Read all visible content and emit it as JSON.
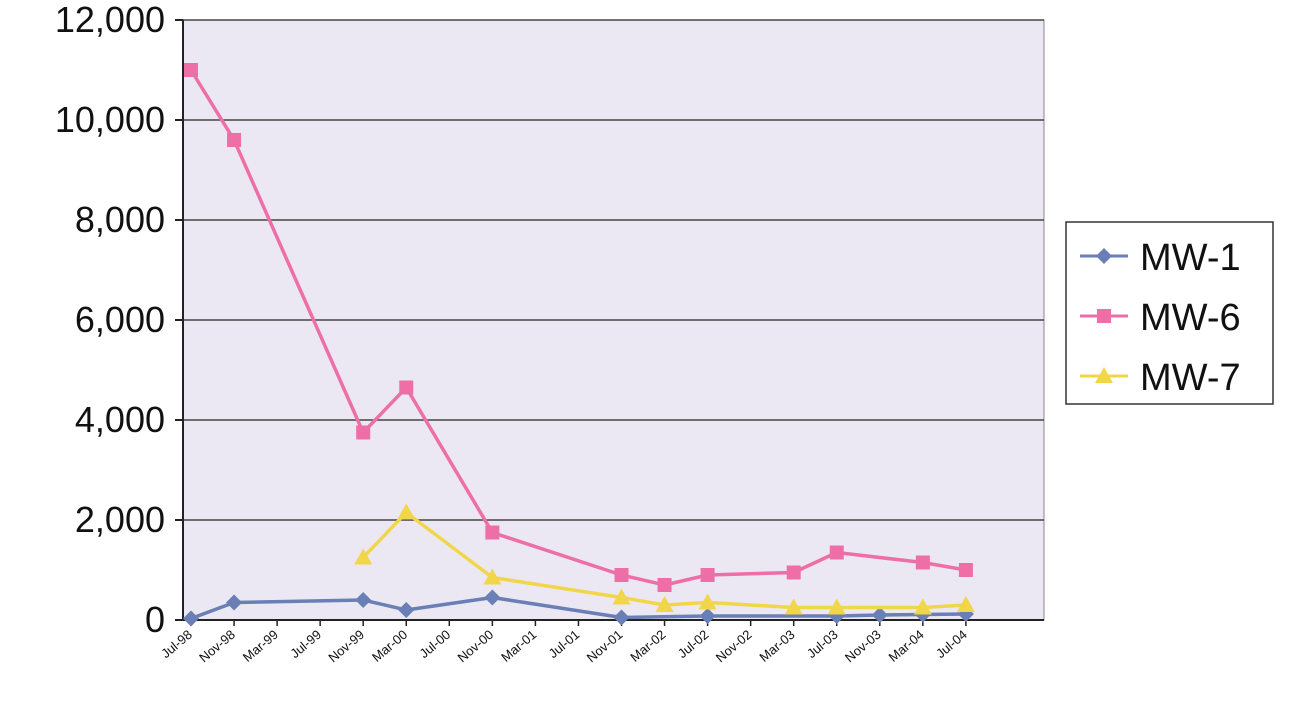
{
  "chart_data": {
    "type": "line",
    "x": [
      "Jul-98",
      "Nov-98",
      "Mar-99",
      "Jul-99",
      "Nov-99",
      "Mar-00",
      "Jul-00",
      "Nov-00",
      "Mar-01",
      "Jul-01",
      "Nov-01",
      "Mar-02",
      "Jul-02",
      "Nov-02",
      "Mar-03",
      "Jul-03",
      "Nov-03",
      "Mar-04",
      "Jul-04"
    ],
    "yticks": [
      "0",
      "2,000",
      "4,000",
      "6,000",
      "8,000",
      "10,000",
      "12,000"
    ],
    "ylim": [
      0,
      12000
    ],
    "grid": true,
    "legend_position": "right",
    "series": [
      {
        "name": "MW-1",
        "color": "#6a7fb5",
        "marker": "diamond",
        "points": [
          {
            "x": "Jul-98",
            "y": 30
          },
          {
            "x": "Nov-98",
            "y": 350
          },
          {
            "x": "Nov-99",
            "y": 400
          },
          {
            "x": "Mar-00",
            "y": 200
          },
          {
            "x": "Nov-00",
            "y": 450
          },
          {
            "x": "Nov-01",
            "y": 50
          },
          {
            "x": "Jul-02",
            "y": 80
          },
          {
            "x": "Jul-03",
            "y": 80
          },
          {
            "x": "Nov-03",
            "y": 100
          },
          {
            "x": "Mar-04",
            "y": 110
          },
          {
            "x": "Jul-04",
            "y": 120
          }
        ]
      },
      {
        "name": "MW-6",
        "color": "#ee6fa8",
        "marker": "square",
        "points": [
          {
            "x": "Jul-98",
            "y": 11000
          },
          {
            "x": "Nov-98",
            "y": 9600
          },
          {
            "x": "Nov-99",
            "y": 3750
          },
          {
            "x": "Mar-00",
            "y": 4650
          },
          {
            "x": "Nov-00",
            "y": 1750
          },
          {
            "x": "Nov-01",
            "y": 900
          },
          {
            "x": "Mar-02",
            "y": 700
          },
          {
            "x": "Jul-02",
            "y": 900
          },
          {
            "x": "Mar-03",
            "y": 950
          },
          {
            "x": "Jul-03",
            "y": 1350
          },
          {
            "x": "Mar-04",
            "y": 1150
          },
          {
            "x": "Jul-04",
            "y": 1000
          }
        ]
      },
      {
        "name": "MW-7",
        "color": "#f2d64a",
        "marker": "triangle",
        "points": [
          {
            "x": "Nov-99",
            "y": 1250
          },
          {
            "x": "Mar-00",
            "y": 2150
          },
          {
            "x": "Nov-00",
            "y": 850
          },
          {
            "x": "Nov-01",
            "y": 450
          },
          {
            "x": "Mar-02",
            "y": 300
          },
          {
            "x": "Jul-02",
            "y": 350
          },
          {
            "x": "Mar-03",
            "y": 250
          },
          {
            "x": "Jul-03",
            "y": 250
          },
          {
            "x": "Mar-04",
            "y": 250
          },
          {
            "x": "Jul-04",
            "y": 300
          }
        ]
      }
    ]
  }
}
